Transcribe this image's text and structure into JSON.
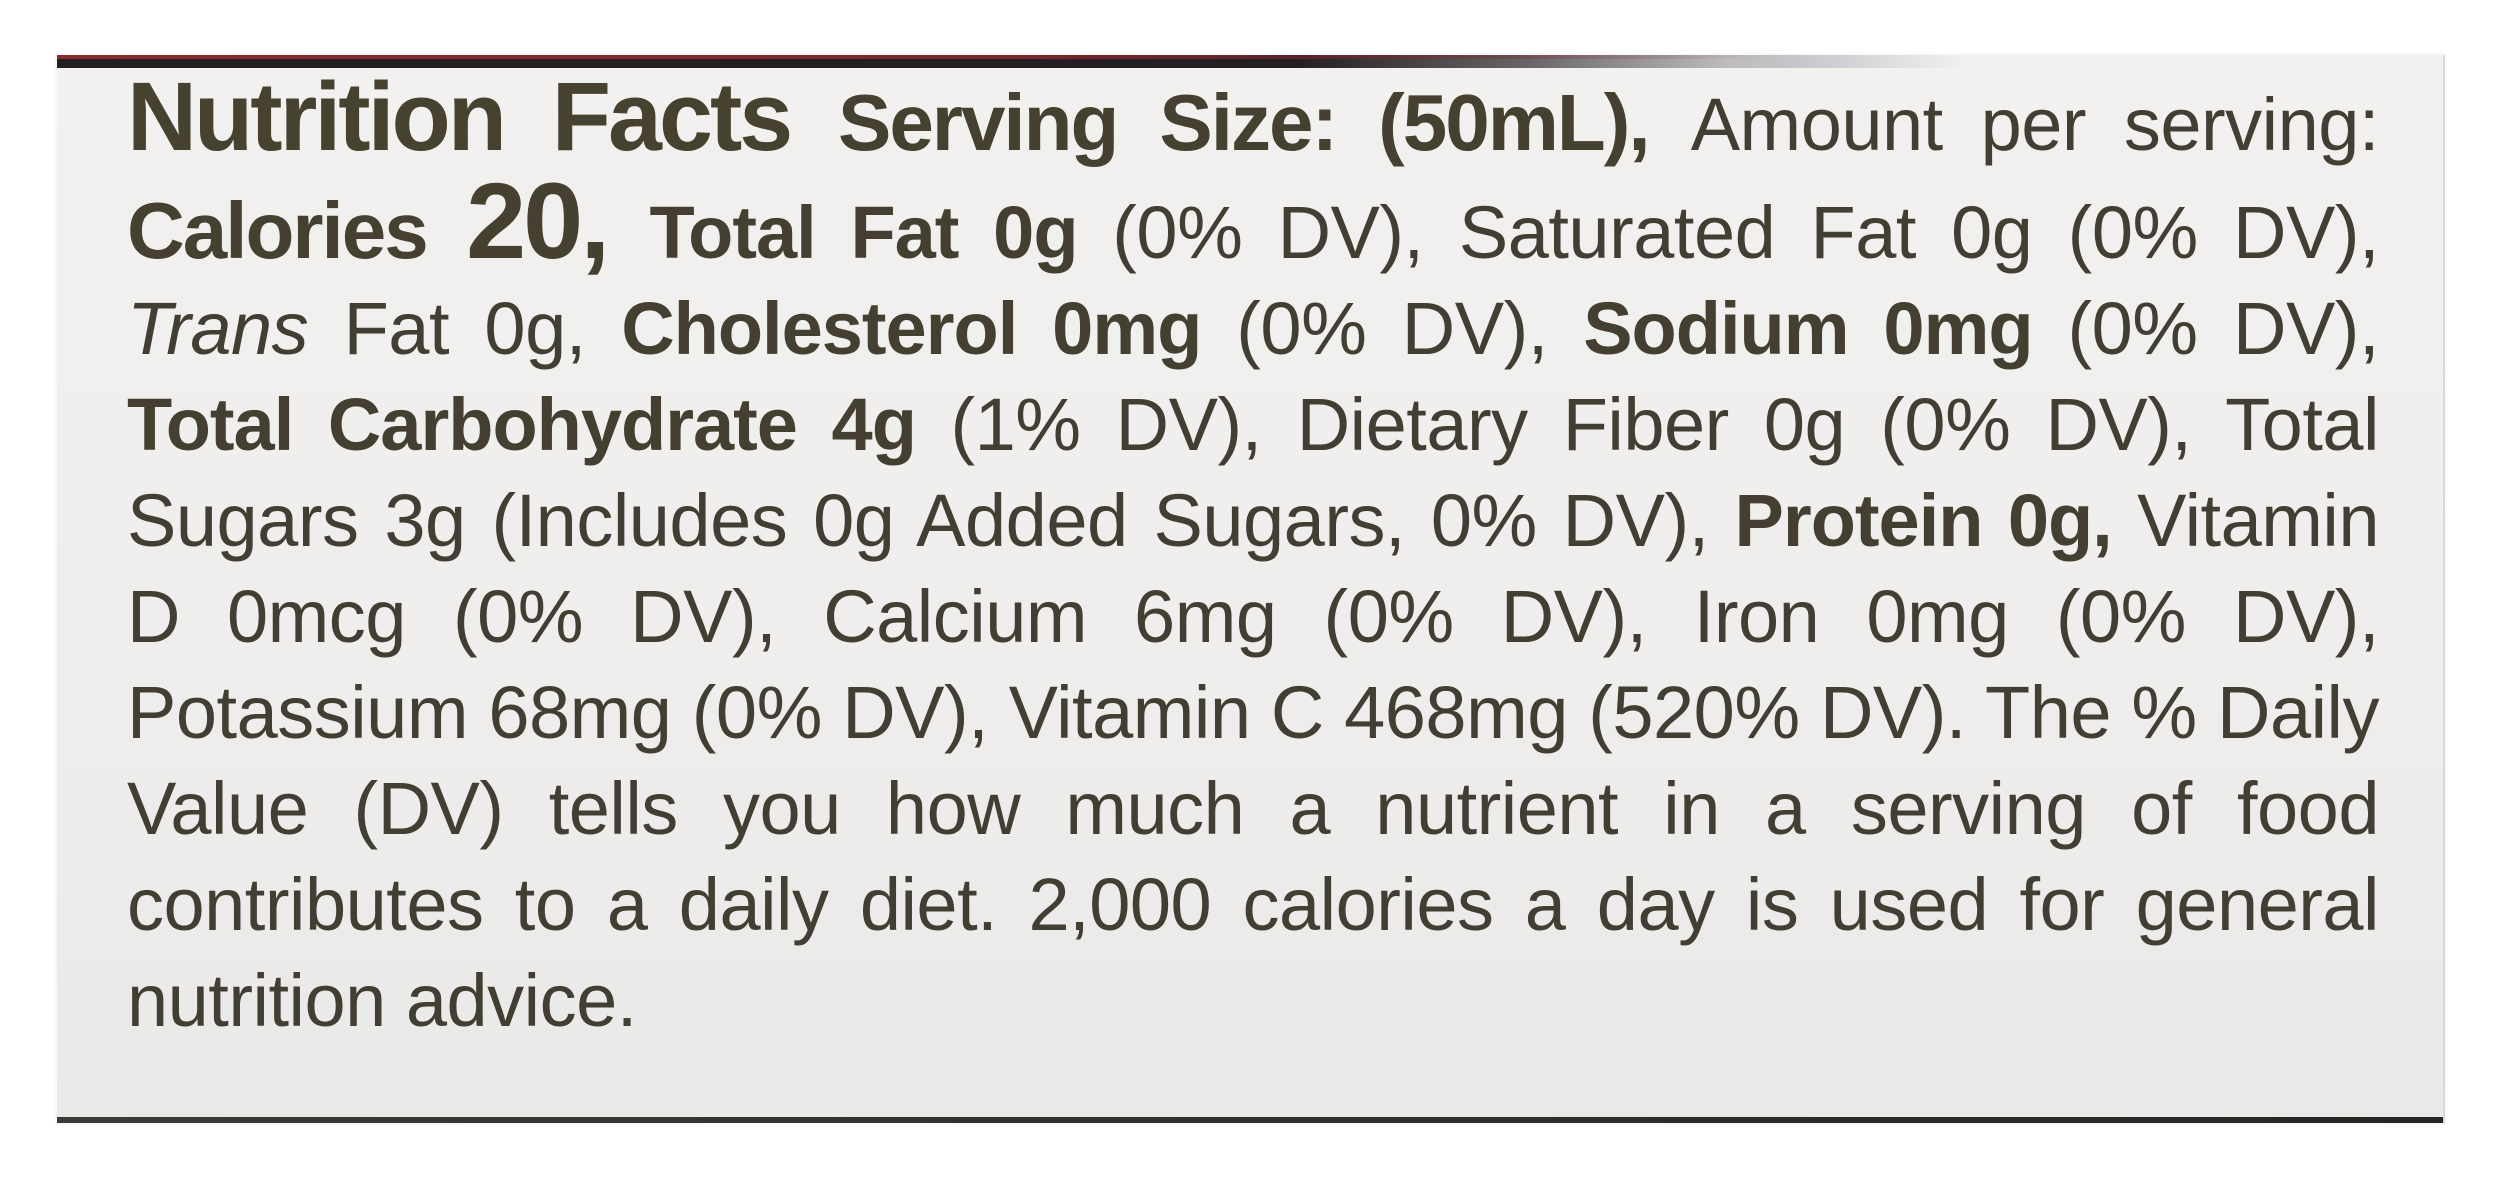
{
  "colors": {
    "text": "#433e33",
    "label_background": "#efeeec",
    "package_edge_red": "#8e2b31",
    "package_edge_dark": "#241f23"
  },
  "label": {
    "segments": [
      {
        "text": "Nutrition Facts "
      },
      {
        "text": "Serving Size: (50mL), "
      },
      {
        "text": "Amount per serving: "
      },
      {
        "text": "Calories "
      },
      {
        "text": "20, "
      },
      {
        "text": "Total Fat 0g "
      },
      {
        "text": "(0% DV), "
      },
      {
        "text": "Saturated Fat 0g (0% DV), "
      },
      {
        "text": "Trans"
      },
      {
        "text": " Fat 0g, "
      },
      {
        "text": "Cholesterol 0mg "
      },
      {
        "text": "(0% DV), "
      },
      {
        "text": "Sodium 0mg "
      },
      {
        "text": "(0% DV), "
      },
      {
        "text": "Total Carbohydrate 4g "
      },
      {
        "text": "(1% DV), Dietary Fiber 0g (0% DV), Total Sugars 3g (Includes 0g Added Sugars, 0% DV), "
      },
      {
        "text": "Protein 0g, "
      },
      {
        "text": "Vitamin D 0mcg (0% DV), Calcium 6mg (0% DV), Iron 0mg (0% DV), Potassium 68mg (0% DV), Vitamin C 468mg (520% DV). The % Daily Value (DV) tells you how much a nutrient in a serving of food contributes to a daily diet. 2,000 calories a day is used for general nutrition advice."
      }
    ]
  },
  "nutrition": {
    "title": "Nutrition Facts",
    "serving_size": "(50mL)",
    "calories": "20",
    "nutrients": [
      {
        "name": "Total Fat",
        "amount": "0g",
        "dv": "0% DV"
      },
      {
        "name": "Saturated Fat",
        "amount": "0g",
        "dv": "0% DV"
      },
      {
        "name": "Trans Fat",
        "amount": "0g",
        "dv": ""
      },
      {
        "name": "Cholesterol",
        "amount": "0mg",
        "dv": "0% DV"
      },
      {
        "name": "Sodium",
        "amount": "0mg",
        "dv": "0% DV"
      },
      {
        "name": "Total Carbohydrate",
        "amount": "4g",
        "dv": "1% DV"
      },
      {
        "name": "Dietary Fiber",
        "amount": "0g",
        "dv": "0% DV"
      },
      {
        "name": "Total Sugars",
        "amount": "3g",
        "dv": ""
      },
      {
        "name": "Added Sugars",
        "amount": "0g",
        "dv": "0% DV"
      },
      {
        "name": "Protein",
        "amount": "0g",
        "dv": ""
      },
      {
        "name": "Vitamin D",
        "amount": "0mcg",
        "dv": "0% DV"
      },
      {
        "name": "Calcium",
        "amount": "6mg",
        "dv": "0% DV"
      },
      {
        "name": "Iron",
        "amount": "0mg",
        "dv": "0% DV"
      },
      {
        "name": "Potassium",
        "amount": "68mg",
        "dv": "0% DV"
      },
      {
        "name": "Vitamin C",
        "amount": "468mg",
        "dv": "520% DV"
      }
    ],
    "footnote": "The % Daily Value (DV) tells you how much a nutrient in a serving of food contributes to a daily diet. 2,000 calories a day is used for general nutrition advice."
  }
}
